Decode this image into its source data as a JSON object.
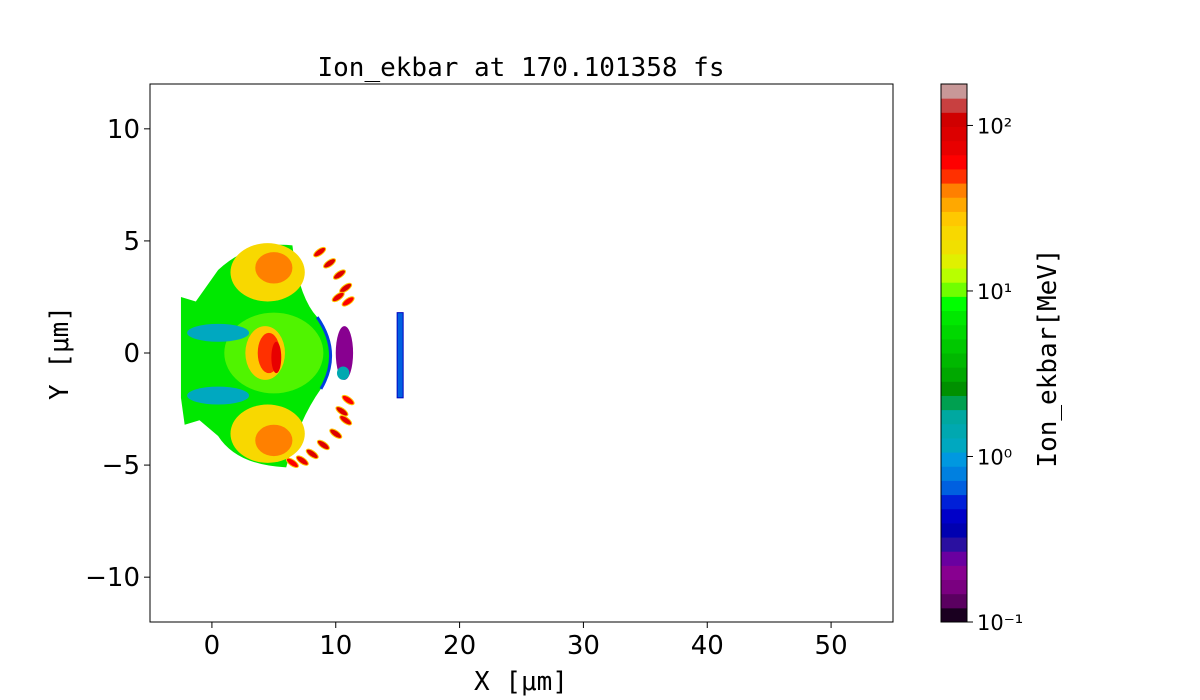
{
  "chart_data": {
    "type": "heatmap",
    "title": "Ion_ekbar at 170.101358 fs",
    "xlabel": "X [$\\mu m$]",
    "xlabel_display": "X [μm]",
    "ylabel_display": "Y [μm]",
    "xlim": [
      -5,
      55
    ],
    "ylim": [
      -12,
      12
    ],
    "xticks": [
      0,
      10,
      20,
      30,
      40,
      50
    ],
    "xtick_labels": [
      "0",
      "10",
      "20",
      "30",
      "40",
      "50"
    ],
    "yticks": [
      10,
      5,
      0,
      -5,
      -10
    ],
    "ytick_labels": [
      "10",
      "5",
      "0",
      "−5",
      "−10"
    ],
    "grid": false,
    "colorbar": {
      "label": "Ion_ekbar[MeV]",
      "scale": "log",
      "range": [
        0.1,
        178
      ],
      "ticks": [
        0.1,
        1,
        10,
        100
      ],
      "tick_labels": [
        "10⁻¹",
        "10⁰",
        "10¹",
        "10²"
      ],
      "colors": [
        "#1a0020",
        "#5a0060",
        "#7a0080",
        "#880090",
        "#6a00a0",
        "#2a10a0",
        "#0000b0",
        "#0000c8",
        "#0020d8",
        "#0060e0",
        "#0080e0",
        "#0098e0",
        "#00a8c0",
        "#00a8b0",
        "#00a8a0",
        "#00a050",
        "#009000",
        "#00a800",
        "#00b800",
        "#00c800",
        "#00d800",
        "#00e800",
        "#00ff00",
        "#70ff00",
        "#b8ff00",
        "#e0f000",
        "#f0e000",
        "#f8d800",
        "#ffc800",
        "#ffa800",
        "#ff8000",
        "#ff3000",
        "#ff0000",
        "#e80000",
        "#dc0000",
        "#d00000",
        "#c84040",
        "#c89898"
      ]
    },
    "regions": [
      {
        "shape": "body",
        "x": [
          -2.5,
          10
        ],
        "y": [
          -5,
          5
        ],
        "value": 7
      },
      {
        "shape": "ellipse",
        "cx": 4.5,
        "cy": 3.6,
        "rx": 3,
        "ry": 1.3,
        "value": 22
      },
      {
        "shape": "ellipse",
        "cx": 4.5,
        "cy": -3.6,
        "rx": 3,
        "ry": 1.3,
        "value": 22
      },
      {
        "shape": "ellipse",
        "cx": 5,
        "cy": 3.8,
        "rx": 1.5,
        "ry": 0.7,
        "value": 40
      },
      {
        "shape": "ellipse",
        "cx": 5,
        "cy": -3.9,
        "rx": 1.5,
        "ry": 0.7,
        "value": 40
      },
      {
        "shape": "ellipse",
        "cx": 0.5,
        "cy": 0.9,
        "rx": 2.5,
        "ry": 0.4,
        "value": 1.2
      },
      {
        "shape": "ellipse",
        "cx": 0.5,
        "cy": -1.9,
        "rx": 2.5,
        "ry": 0.4,
        "value": 1.2
      },
      {
        "shape": "ellipse",
        "cx": 4.3,
        "cy": 0,
        "rx": 1.6,
        "ry": 1.2,
        "value": 25
      },
      {
        "shape": "ellipse",
        "cx": 4.6,
        "cy": 0,
        "rx": 0.9,
        "ry": 0.9,
        "value": 45
      },
      {
        "shape": "ellipse",
        "cx": 5.2,
        "cy": -0.2,
        "rx": 0.4,
        "ry": 0.7,
        "value": 80
      },
      {
        "shape": "ellipse",
        "cx": 10.7,
        "cy": 0,
        "rx": 0.7,
        "ry": 1.2,
        "value": 0.2
      },
      {
        "shape": "ellipse",
        "cx": 10.6,
        "cy": -0.9,
        "rx": 0.5,
        "ry": 0.3,
        "value": 1.5
      },
      {
        "shape": "line",
        "x": 15.2,
        "y": [
          -2,
          1.8
        ],
        "value": 0.7
      }
    ],
    "stripes": [
      {
        "x": 9.5,
        "y": 4.0,
        "value": 90
      },
      {
        "x": 10.3,
        "y": 3.5,
        "value": 90
      },
      {
        "x": 10.8,
        "y": 2.9,
        "value": 90
      },
      {
        "x": 10.2,
        "y": 2.5,
        "value": 70
      },
      {
        "x": 8.7,
        "y": 4.5,
        "value": 80
      },
      {
        "x": 11.0,
        "y": 2.3,
        "value": 60
      },
      {
        "x": 9.0,
        "y": -4.1,
        "value": 90
      },
      {
        "x": 8.1,
        "y": -4.5,
        "value": 90
      },
      {
        "x": 7.3,
        "y": -4.8,
        "value": 80
      },
      {
        "x": 10.0,
        "y": -3.6,
        "value": 90
      },
      {
        "x": 10.8,
        "y": -3.0,
        "value": 80
      },
      {
        "x": 11.0,
        "y": -2.1,
        "value": 60
      },
      {
        "x": 10.5,
        "y": -2.6,
        "value": 90
      },
      {
        "x": 6.5,
        "y": -4.9,
        "value": 60
      }
    ]
  }
}
